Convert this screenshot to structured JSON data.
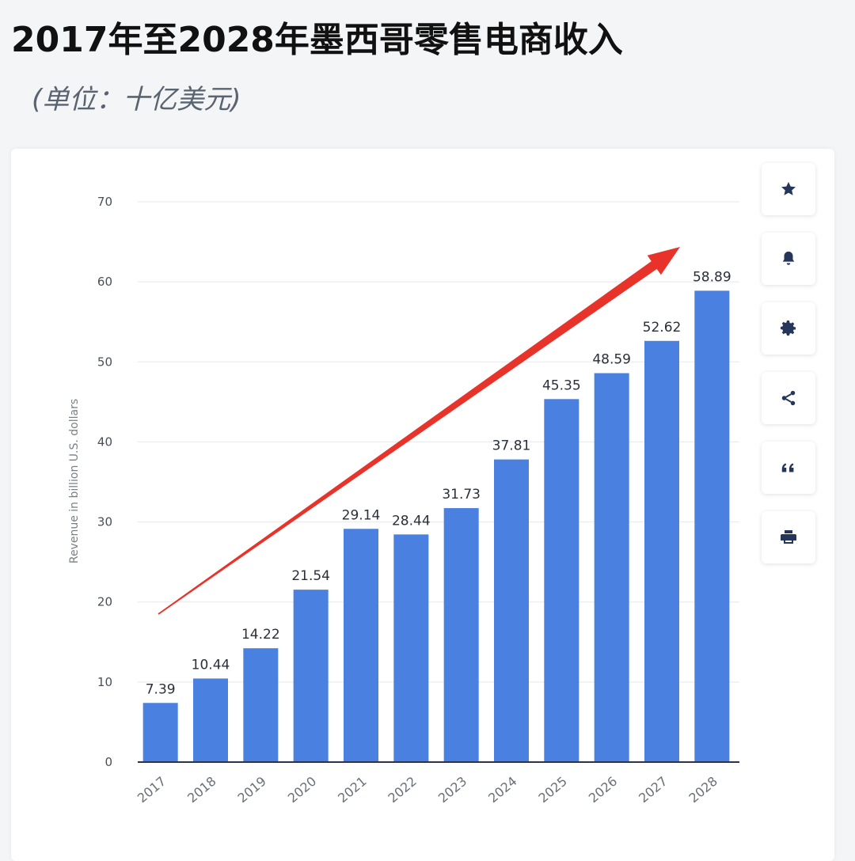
{
  "header": {
    "title": "2017年至2028年墨西哥零售电商收入",
    "subtitle": "(单位：十亿美元)"
  },
  "toolbar": {
    "buttons": [
      {
        "name": "favorite-button",
        "icon": "star-icon"
      },
      {
        "name": "notification-button",
        "icon": "bell-icon"
      },
      {
        "name": "settings-button",
        "icon": "gear-icon"
      },
      {
        "name": "share-button",
        "icon": "share-icon"
      },
      {
        "name": "cite-button",
        "icon": "quote-icon"
      },
      {
        "name": "print-button",
        "icon": "print-icon"
      }
    ]
  },
  "chart_data": {
    "type": "bar",
    "categories": [
      "2017",
      "2018",
      "2019",
      "2020",
      "2021",
      "2022",
      "2023",
      "2024",
      "2025",
      "2026",
      "2027",
      "2028"
    ],
    "values": [
      7.39,
      10.44,
      14.22,
      21.54,
      29.14,
      28.44,
      31.73,
      37.81,
      45.35,
      48.59,
      52.62,
      58.89
    ],
    "value_labels": [
      "7.39",
      "10.44",
      "14.22",
      "21.54",
      "29.14",
      "28.44",
      "31.73",
      "37.81",
      "45.35",
      "48.59",
      "52.62",
      "58.89"
    ],
    "ylabel": "Revenue in billion U.S. dollars",
    "ylim": [
      0,
      70
    ],
    "yticks": [
      "0",
      "10",
      "20",
      "30",
      "40",
      "50",
      "60",
      "70"
    ],
    "grid": true,
    "bar_color": "#4a80e0",
    "trend_arrow_color": "#e8332a"
  }
}
